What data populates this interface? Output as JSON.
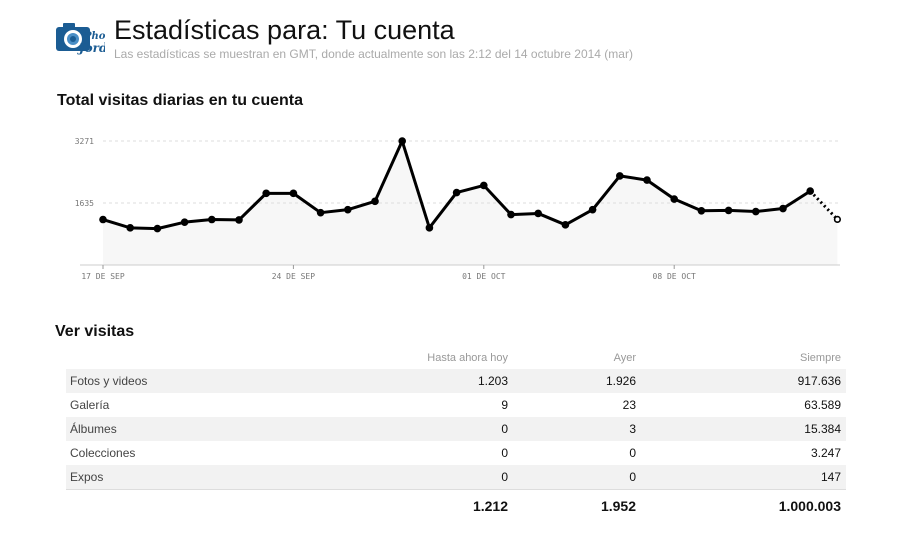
{
  "header": {
    "logo_text_top": "Photo",
    "logo_text_bottom": "Jordi",
    "title": "Estadísticas para: Tu cuenta",
    "subtitle": "Las estadísticas se muestran en GMT, donde actualmente son las 2:12 del 14 octubre 2014 (mar)"
  },
  "sections": {
    "chart_title": "Total visitas diarias en tu cuenta",
    "visits_title": "Ver visitas"
  },
  "chart_data": {
    "type": "line",
    "title": "Total visitas diarias en tu cuenta",
    "x_start": "2014-09-17",
    "x_ticks": [
      "17 DE SEP",
      "24 DE SEP",
      "01 DE OCT",
      "08 DE OCT"
    ],
    "y_ticks": [
      1635,
      3271
    ],
    "ylim": [
      0,
      3271
    ],
    "grid": true,
    "values": [
      1200,
      980,
      960,
      1130,
      1200,
      1190,
      1890,
      1890,
      1380,
      1460,
      1680,
      3270,
      980,
      1910,
      2100,
      1330,
      1360,
      1060,
      1460,
      2350,
      2240,
      1740,
      1430,
      1440,
      1410,
      1490,
      1950,
      1203
    ],
    "partial_last": true,
    "colors": {
      "line": "#000000",
      "fill": "#f7f7f7",
      "grid": "#dddddd",
      "axis_text": "#777777"
    }
  },
  "table": {
    "headers": [
      "",
      "Hasta ahora hoy",
      "Ayer",
      "Siempre"
    ],
    "rows": [
      [
        "Fotos y videos",
        "1.203",
        "1.926",
        "917.636"
      ],
      [
        "Galería",
        "9",
        "23",
        "63.589"
      ],
      [
        "Álbumes",
        "0",
        "3",
        "15.384"
      ],
      [
        "Colecciones",
        "0",
        "0",
        "3.247"
      ],
      [
        "Expos",
        "0",
        "0",
        "147"
      ]
    ],
    "totals": [
      "",
      "1.212",
      "1.952",
      "1.000.003"
    ]
  },
  "colors": {
    "logo_blue": "#1b5c93",
    "title": "#111111",
    "subtitle": "#aaaaaa",
    "row_alt": "#f2f2f2"
  }
}
